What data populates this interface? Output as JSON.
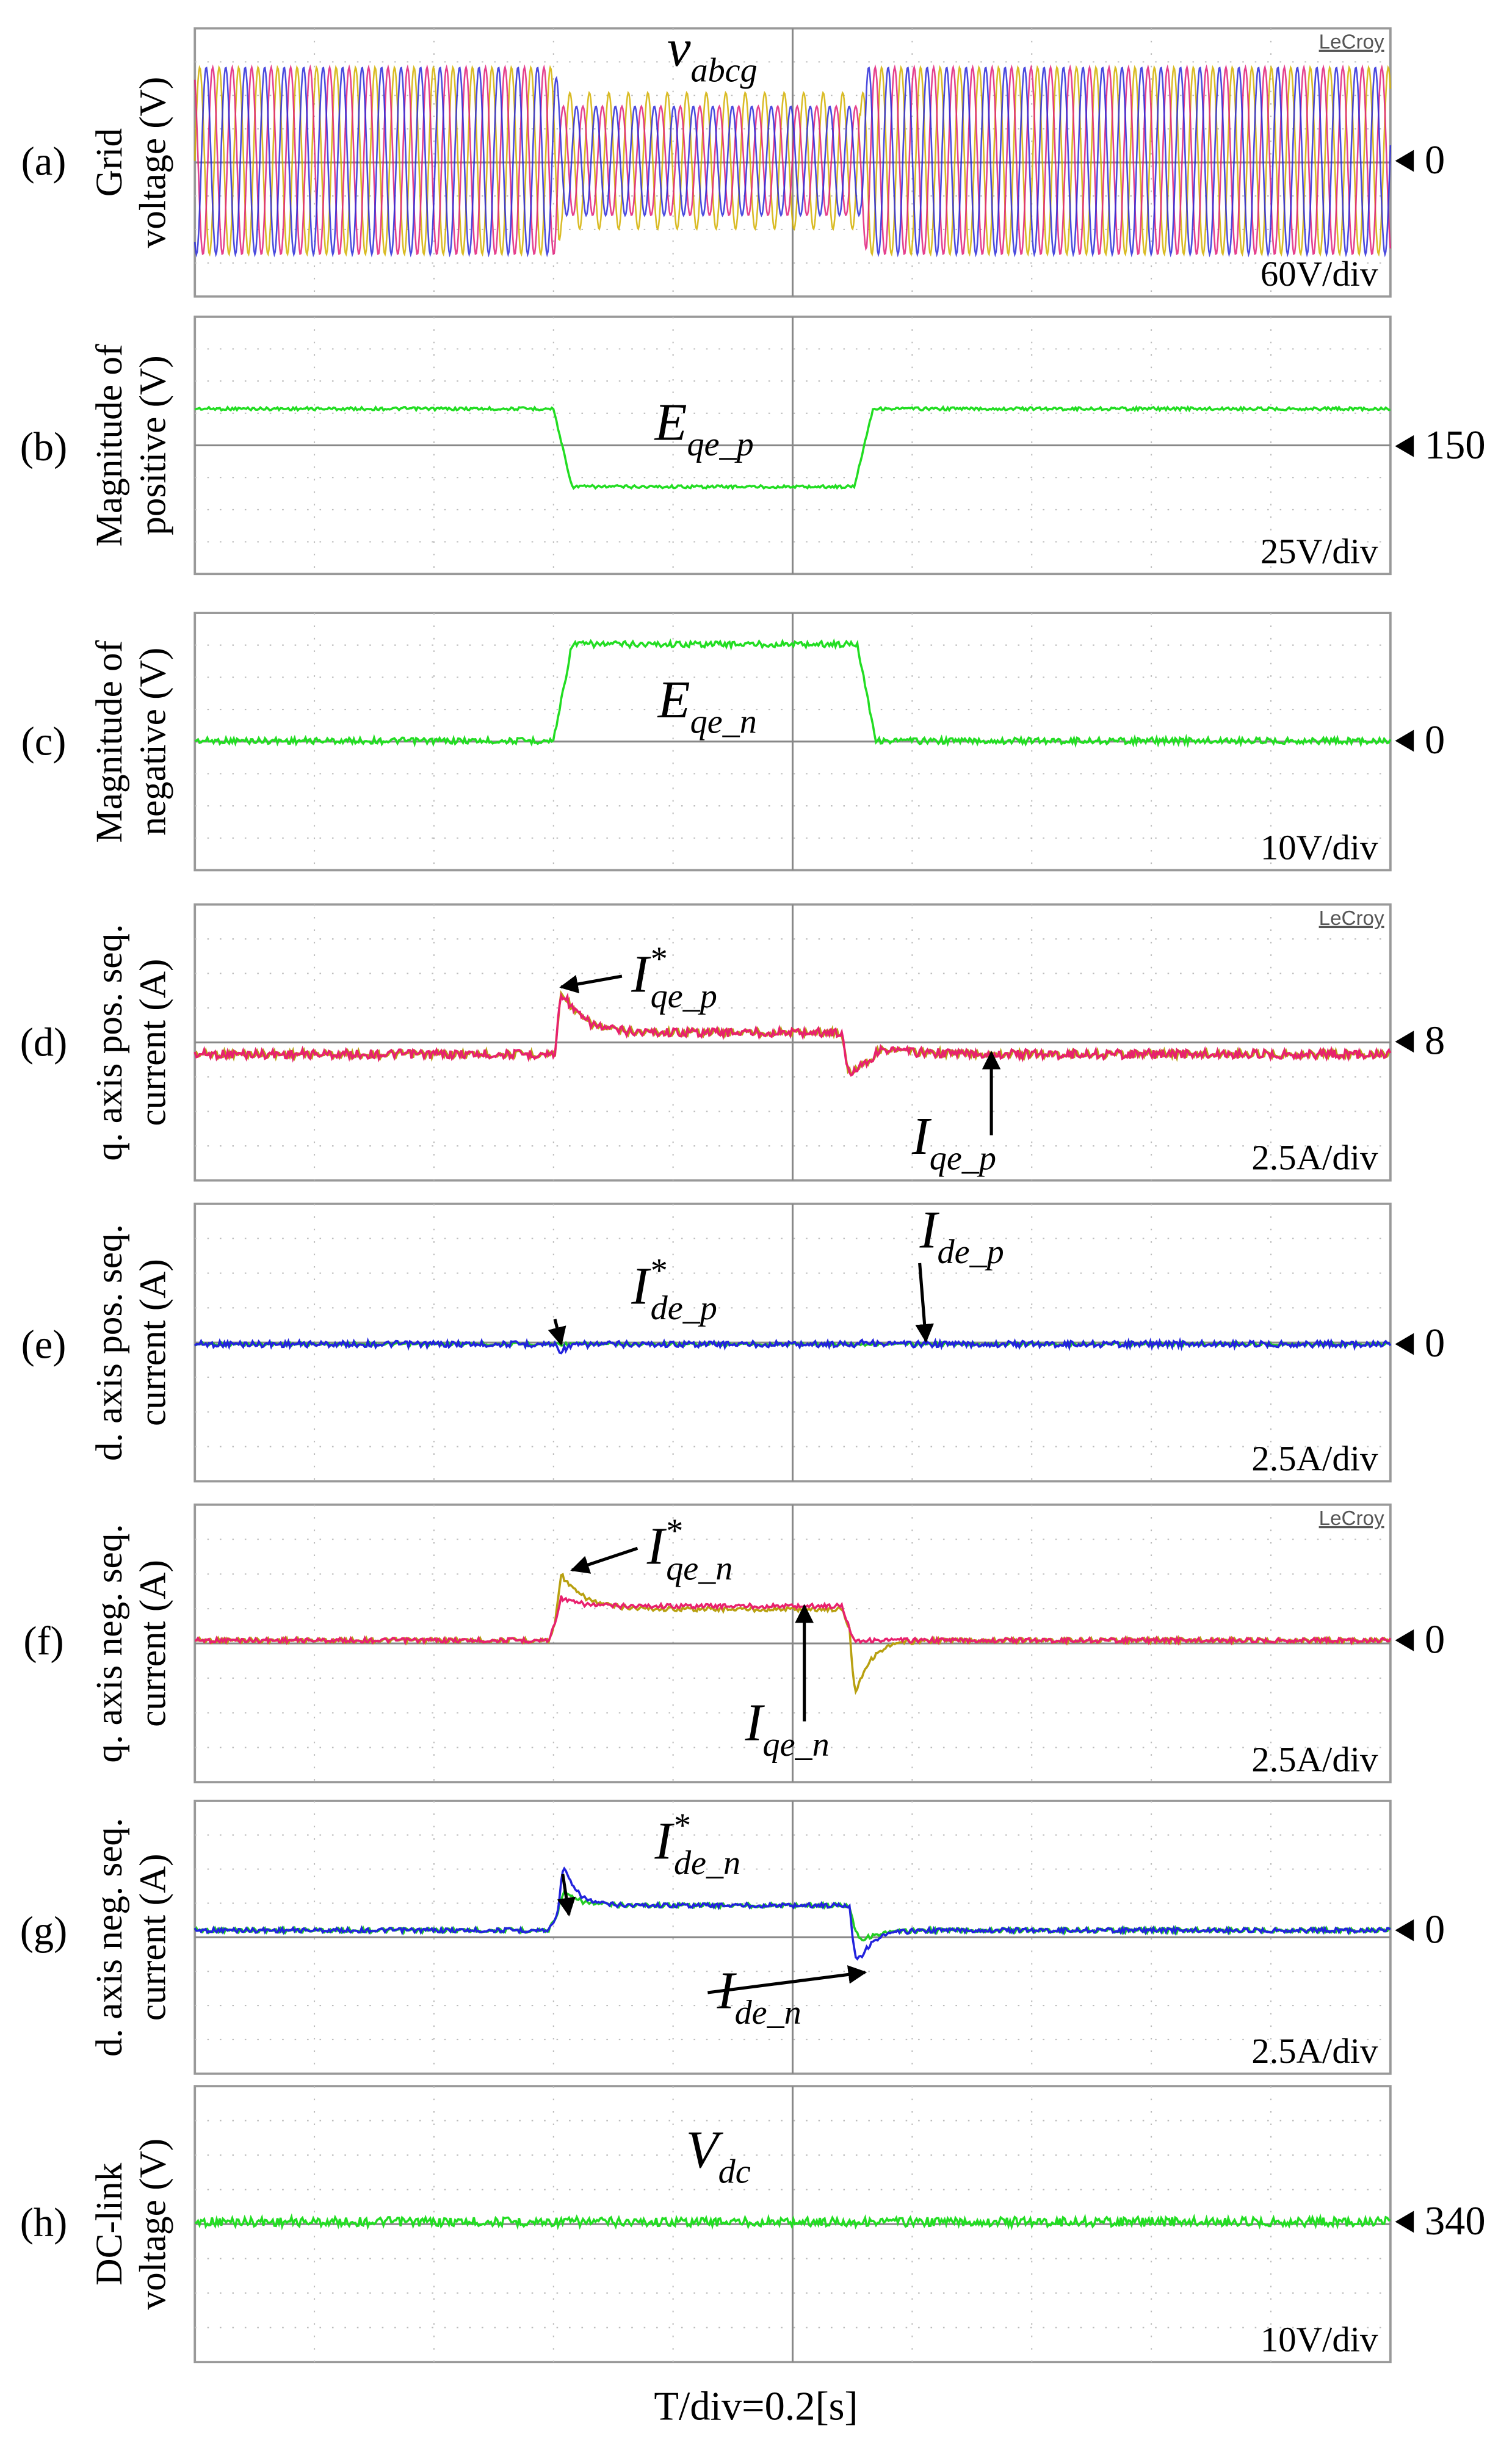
{
  "xlabel": "T/div=0.2[s]",
  "panels": [
    {
      "label": "(a)",
      "ylabel": [
        "Grid",
        "voltage (V)"
      ],
      "scale": "60V/div",
      "ref": 0,
      "brand": "LeCroy",
      "traces": [
        {
          "main": "v",
          "sub": "abcg"
        }
      ]
    },
    {
      "label": "(b)",
      "ylabel": [
        "Magnitude of",
        "positive (V)"
      ],
      "scale": "25V/div",
      "ref": 150,
      "traces": [
        {
          "main": "E",
          "sub": "qe_p"
        }
      ]
    },
    {
      "label": "(c)",
      "ylabel": [
        "Magnitude of",
        "negative (V)"
      ],
      "scale": "10V/div",
      "ref": 0,
      "traces": [
        {
          "main": "E",
          "sub": "qe_n"
        }
      ]
    },
    {
      "label": "(d)",
      "ylabel": [
        "q. axis pos. seq.",
        "current (A)"
      ],
      "scale": "2.5A/div",
      "ref": 8,
      "brand": "LeCroy",
      "traces": [
        {
          "main": "I",
          "sup": "*",
          "sub": "qe_p"
        },
        {
          "main": "I",
          "sub": "qe_p"
        }
      ]
    },
    {
      "label": "(e)",
      "ylabel": [
        "d. axis pos. seq.",
        "current (A)"
      ],
      "scale": "2.5A/div",
      "ref": 0,
      "traces": [
        {
          "main": "I",
          "sup": "*",
          "sub": "de_p"
        },
        {
          "main": "I",
          "sub": "de_p"
        }
      ]
    },
    {
      "label": "(f)",
      "ylabel": [
        "q. axis neg. seq.",
        "current (A)"
      ],
      "scale": "2.5A/div",
      "ref": 0,
      "brand": "LeCroy",
      "traces": [
        {
          "main": "I",
          "sup": "*",
          "sub": "qe_n"
        },
        {
          "main": "I",
          "sub": "qe_n"
        }
      ]
    },
    {
      "label": "(g)",
      "ylabel": [
        "d. axis neg. seq.",
        "current (A)"
      ],
      "scale": "2.5A/div",
      "ref": 0,
      "traces": [
        {
          "main": "I",
          "sup": "*",
          "sub": "de_n"
        },
        {
          "main": "I",
          "sub": "de_n"
        }
      ]
    },
    {
      "label": "(h)",
      "ylabel": [
        "DC-link",
        "voltage (V)"
      ],
      "scale": "10V/div",
      "ref": 340,
      "traces": [
        {
          "main": "V",
          "sub": "dc"
        }
      ]
    }
  ]
}
